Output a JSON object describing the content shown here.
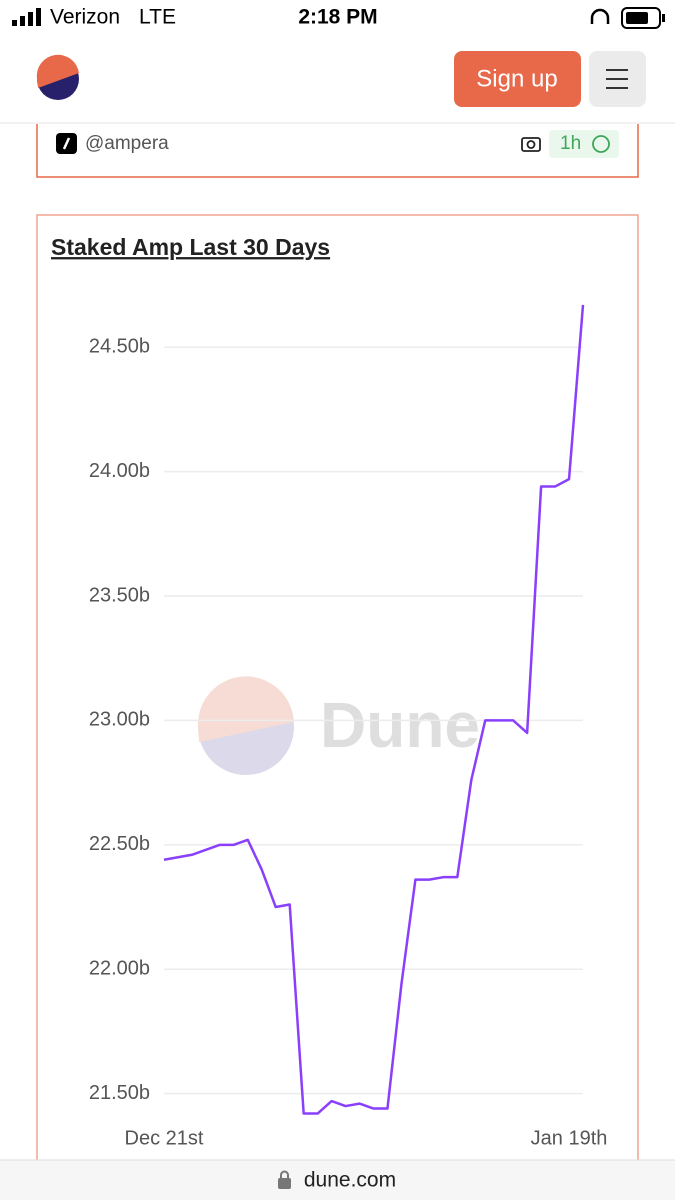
{
  "status": {
    "carrier": "Verizon",
    "network": "LTE",
    "time": "2:18 PM"
  },
  "header": {
    "button": "Sign up"
  },
  "author": {
    "handle": "@ampera",
    "age": "1h"
  },
  "watermark": "Dune",
  "url": "dune.com",
  "chart_data": {
    "type": "line",
    "title": "Staked Amp Last 30 Days",
    "color": "#8a3ffc",
    "grid": true,
    "categories": [
      "Dec 21st",
      null,
      null,
      null,
      null,
      null,
      null,
      null,
      null,
      null,
      null,
      null,
      null,
      null,
      null,
      null,
      null,
      null,
      null,
      null,
      null,
      null,
      null,
      null,
      null,
      null,
      null,
      null,
      null,
      "Jan 19th",
      null
    ],
    "values": [
      22.44,
      22.45,
      22.46,
      22.48,
      22.5,
      22.5,
      22.52,
      22.4,
      22.25,
      22.26,
      21.42,
      21.42,
      21.47,
      21.45,
      21.46,
      21.44,
      21.44,
      21.94,
      22.36,
      22.36,
      22.37,
      22.37,
      22.76,
      23.0,
      23.0,
      23.0,
      22.95,
      23.94,
      23.94,
      23.97,
      24.67
    ],
    "ylim": [
      21.39,
      24.73
    ],
    "yticks": [
      {
        "value": 21.5,
        "label": "21.50b"
      },
      {
        "value": 22,
        "label": "22.00b"
      },
      {
        "value": 22.5,
        "label": "22.50b"
      },
      {
        "value": 23,
        "label": "23.00b"
      },
      {
        "value": 23.5,
        "label": "23.50b"
      },
      {
        "value": 24,
        "label": "24.00b"
      },
      {
        "value": 24.5,
        "label": "24.50b"
      }
    ]
  }
}
